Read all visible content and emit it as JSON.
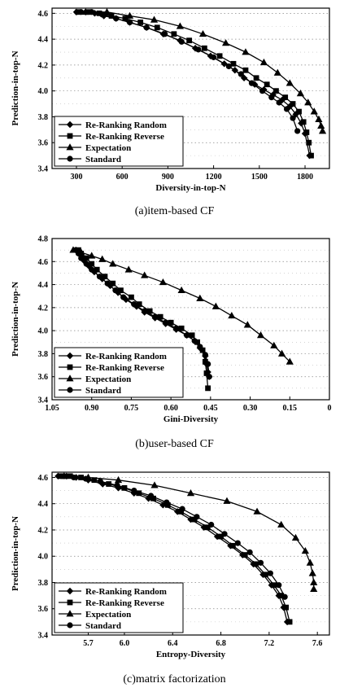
{
  "chart_data": [
    {
      "type": "line",
      "caption": "(a)item-based CF",
      "xlabel": "Diversity-in-top-N",
      "ylabel": "Prediction-in-top-N",
      "xlim": [
        140,
        1960
      ],
      "ylim": [
        3.4,
        4.64
      ],
      "xticks": [
        300,
        600,
        900,
        1200,
        1500,
        1800
      ],
      "xtick_labels": [
        "300",
        "600",
        "900",
        "1200",
        "1500",
        "1800"
      ],
      "yticks": [
        3.4,
        3.6,
        3.8,
        4.0,
        4.2,
        4.4,
        4.6
      ],
      "ytick_labels": [
        "3.4",
        "3.6",
        "3.8",
        "4.0",
        "4.2",
        "4.4",
        "4.6"
      ],
      "grid": "dotted",
      "legend_position": "bottom-left",
      "series": [
        {
          "name": "Re-Ranking  Random",
          "marker": "diamond",
          "x": [
            300,
            360,
            420,
            480,
            560,
            650,
            760,
            870,
            980,
            1080,
            1180,
            1270,
            1340,
            1400,
            1470,
            1530,
            1590,
            1650,
            1700,
            1740,
            1775,
            1800,
            1830
          ],
          "y": [
            4.61,
            4.61,
            4.6,
            4.58,
            4.56,
            4.53,
            4.49,
            4.44,
            4.39,
            4.33,
            4.27,
            4.21,
            4.16,
            4.1,
            4.05,
            4.01,
            3.97,
            3.93,
            3.88,
            3.82,
            3.75,
            3.67,
            3.5
          ]
        },
        {
          "name": "Re-Ranking  Reverse",
          "marker": "square",
          "x": [
            310,
            380,
            450,
            530,
            620,
            720,
            830,
            940,
            1040,
            1140,
            1240,
            1330,
            1410,
            1480,
            1550,
            1610,
            1670,
            1720,
            1760,
            1790,
            1810,
            1825,
            1840
          ],
          "y": [
            4.61,
            4.61,
            4.6,
            4.58,
            4.56,
            4.53,
            4.49,
            4.44,
            4.39,
            4.33,
            4.27,
            4.21,
            4.16,
            4.1,
            4.05,
            4.0,
            3.95,
            3.9,
            3.84,
            3.76,
            3.68,
            3.6,
            3.5
          ]
        },
        {
          "name": "Expectation",
          "marker": "triangle",
          "x": [
            360,
            500,
            650,
            810,
            980,
            1130,
            1280,
            1410,
            1530,
            1620,
            1700,
            1770,
            1820,
            1860,
            1890,
            1905,
            1915
          ],
          "y": [
            4.61,
            4.61,
            4.58,
            4.55,
            4.5,
            4.44,
            4.37,
            4.3,
            4.22,
            4.14,
            4.06,
            3.98,
            3.91,
            3.84,
            3.78,
            3.73,
            3.69
          ]
        },
        {
          "name": "Standard",
          "marker": "circle",
          "x": [
            330,
            400,
            470,
            560,
            650,
            760,
            880,
            990,
            1100,
            1200,
            1300,
            1380,
            1450,
            1520,
            1580,
            1630,
            1680,
            1720,
            1750
          ],
          "y": [
            4.61,
            4.61,
            4.59,
            4.56,
            4.53,
            4.49,
            4.44,
            4.38,
            4.32,
            4.26,
            4.19,
            4.13,
            4.06,
            4.0,
            3.95,
            3.91,
            3.86,
            3.79,
            3.69
          ]
        }
      ]
    },
    {
      "type": "line",
      "caption": "(b)user-based CF",
      "xlabel": "Gini-Diversity",
      "ylabel": "Prediction-in-top-N",
      "xlim": [
        1.05,
        0
      ],
      "ylim": [
        3.4,
        4.8
      ],
      "xticks": [
        1.05,
        0.9,
        0.75,
        0.6,
        0.45,
        0.3,
        0.15,
        0
      ],
      "xtick_labels": [
        "1.05",
        "0.90",
        "0.75",
        "0.60",
        "0.45",
        "0.30",
        "0.15",
        "0"
      ],
      "yticks": [
        3.4,
        3.6,
        3.8,
        4.0,
        4.2,
        4.4,
        4.6,
        4.8
      ],
      "ytick_labels": [
        "3.4",
        "3.6",
        "3.8",
        "4.0",
        "4.2",
        "4.4",
        "4.6",
        "4.8"
      ],
      "grid": "dotted",
      "legend_position": "bottom-left",
      "series": [
        {
          "name": "Re-Ranking  Random",
          "marker": "diamond",
          "x": [
            0.96,
            0.95,
            0.94,
            0.93,
            0.91,
            0.89,
            0.86,
            0.83,
            0.8,
            0.77,
            0.73,
            0.7,
            0.66,
            0.62,
            0.58,
            0.54,
            0.51,
            0.49,
            0.47,
            0.465,
            0.46,
            0.455
          ],
          "y": [
            4.7,
            4.68,
            4.65,
            4.61,
            4.56,
            4.51,
            4.45,
            4.39,
            4.33,
            4.27,
            4.21,
            4.16,
            4.11,
            4.06,
            4.01,
            3.96,
            3.91,
            3.85,
            3.78,
            3.71,
            3.64,
            3.6
          ]
        },
        {
          "name": "Re-Ranking  Reverse",
          "marker": "square",
          "x": [
            0.95,
            0.94,
            0.92,
            0.9,
            0.88,
            0.85,
            0.82,
            0.79,
            0.75,
            0.72,
            0.68,
            0.64,
            0.6,
            0.56,
            0.52,
            0.5,
            0.48,
            0.47,
            0.465,
            0.46
          ],
          "y": [
            4.7,
            4.67,
            4.63,
            4.58,
            4.53,
            4.47,
            4.41,
            4.35,
            4.29,
            4.23,
            4.17,
            4.12,
            4.07,
            4.02,
            3.96,
            3.9,
            3.83,
            3.73,
            3.63,
            3.5
          ]
        },
        {
          "name": "Expectation",
          "marker": "triangle",
          "x": [
            0.97,
            0.94,
            0.9,
            0.86,
            0.82,
            0.76,
            0.7,
            0.63,
            0.56,
            0.49,
            0.43,
            0.37,
            0.31,
            0.26,
            0.21,
            0.18,
            0.15
          ],
          "y": [
            4.7,
            4.68,
            4.65,
            4.62,
            4.58,
            4.53,
            4.48,
            4.42,
            4.35,
            4.28,
            4.21,
            4.13,
            4.05,
            3.96,
            3.87,
            3.8,
            3.73
          ]
        },
        {
          "name": "Standard",
          "marker": "circle",
          "x": [
            0.96,
            0.95,
            0.94,
            0.92,
            0.9,
            0.87,
            0.84,
            0.81,
            0.78,
            0.74,
            0.7,
            0.66,
            0.62,
            0.58,
            0.54,
            0.51,
            0.49,
            0.47,
            0.46,
            0.455
          ],
          "y": [
            4.7,
            4.67,
            4.63,
            4.58,
            4.53,
            4.47,
            4.41,
            4.35,
            4.29,
            4.23,
            4.17,
            4.12,
            4.07,
            4.02,
            3.96,
            3.91,
            3.86,
            3.79,
            3.71,
            3.6
          ]
        }
      ]
    },
    {
      "type": "line",
      "caption": "(c)matrix factorization",
      "xlabel": "Entropy-Diversity",
      "ylabel": "Prediction-in-top-N",
      "xlim": [
        5.4,
        7.7
      ],
      "ylim": [
        3.4,
        4.64
      ],
      "xticks": [
        5.7,
        6.0,
        6.4,
        6.8,
        7.2,
        7.6
      ],
      "xtick_labels": [
        "5.7",
        "6.0",
        "6.4",
        "6.8",
        "7.2",
        "7.6"
      ],
      "yticks": [
        3.4,
        3.6,
        3.8,
        4.0,
        4.2,
        4.4,
        4.6
      ],
      "ytick_labels": [
        "3.4",
        "3.6",
        "3.8",
        "4.0",
        "4.2",
        "4.4",
        "4.6"
      ],
      "grid": "dotted",
      "legend_position": "bottom-left",
      "series": [
        {
          "name": "Re-Ranking  Random",
          "marker": "diamond",
          "x": [
            5.45,
            5.52,
            5.6,
            5.7,
            5.82,
            5.95,
            6.08,
            6.2,
            6.32,
            6.44,
            6.55,
            6.66,
            6.77,
            6.88,
            6.98,
            7.07,
            7.15,
            7.22,
            7.28,
            7.32,
            7.35
          ],
          "y": [
            4.61,
            4.61,
            4.6,
            4.58,
            4.55,
            4.52,
            4.48,
            4.44,
            4.39,
            4.34,
            4.28,
            4.22,
            4.15,
            4.08,
            4.01,
            3.94,
            3.86,
            3.78,
            3.7,
            3.61,
            3.5
          ]
        },
        {
          "name": "Re-Ranking  Reverse",
          "marker": "square",
          "x": [
            5.47,
            5.55,
            5.64,
            5.75,
            5.87,
            6.0,
            6.12,
            6.24,
            6.36,
            6.47,
            6.58,
            6.69,
            6.8,
            6.9,
            7.0,
            7.09,
            7.17,
            7.24,
            7.3,
            7.34,
            7.37
          ],
          "y": [
            4.61,
            4.61,
            4.6,
            4.58,
            4.55,
            4.52,
            4.48,
            4.44,
            4.39,
            4.34,
            4.28,
            4.22,
            4.15,
            4.08,
            4.01,
            3.94,
            3.86,
            3.78,
            3.7,
            3.61,
            3.5
          ]
        },
        {
          "name": "Expectation",
          "marker": "triangle",
          "x": [
            5.5,
            5.7,
            5.95,
            6.25,
            6.55,
            6.85,
            7.1,
            7.3,
            7.42,
            7.5,
            7.54,
            7.56,
            7.57,
            7.57
          ],
          "y": [
            4.61,
            4.6,
            4.58,
            4.54,
            4.48,
            4.42,
            4.34,
            4.24,
            4.14,
            4.04,
            3.95,
            3.87,
            3.8,
            3.75
          ]
        },
        {
          "name": "Standard",
          "marker": "circle",
          "x": [
            5.5,
            5.58,
            5.68,
            5.8,
            5.94,
            6.08,
            6.22,
            6.35,
            6.48,
            6.6,
            6.72,
            6.83,
            6.94,
            7.04,
            7.13,
            7.21,
            7.28,
            7.33
          ],
          "y": [
            4.61,
            4.6,
            4.59,
            4.57,
            4.54,
            4.5,
            4.46,
            4.41,
            4.36,
            4.3,
            4.24,
            4.17,
            4.1,
            4.03,
            3.95,
            3.87,
            3.78,
            3.69
          ]
        }
      ]
    }
  ]
}
